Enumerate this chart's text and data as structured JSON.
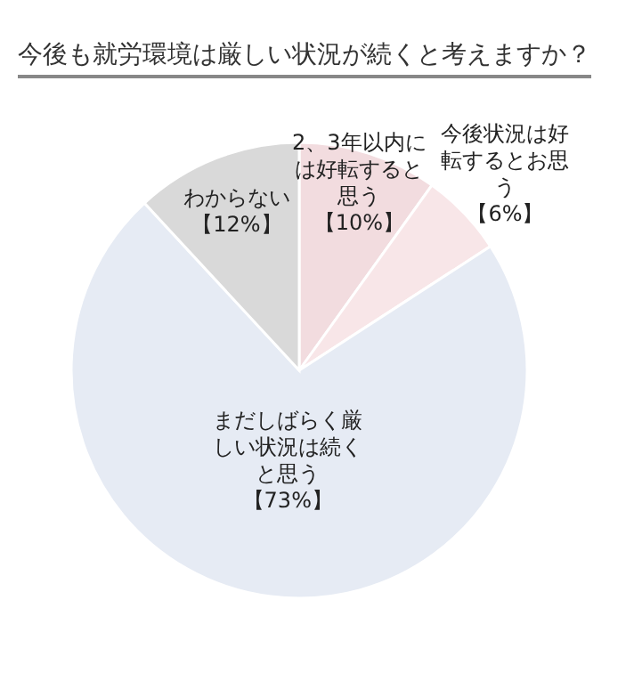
{
  "chart_data": {
    "type": "pie",
    "title": "今後も就労環境は厳しい状況が続くと考えますか？",
    "categories": [
      "2、3年以内には好転すると思う",
      "今後状況は好転するとお思う",
      "まだしばらく厳しい状況は続くと思う",
      "わからない"
    ],
    "values": [
      10,
      6,
      73,
      12
    ],
    "colors": [
      "#f2dcdf",
      "#f8e6e8",
      "#e6ebf4",
      "#d9d9d9"
    ],
    "cell_labels": [
      "【10%】",
      "【6%】",
      "【73%】",
      "【12%】"
    ]
  }
}
